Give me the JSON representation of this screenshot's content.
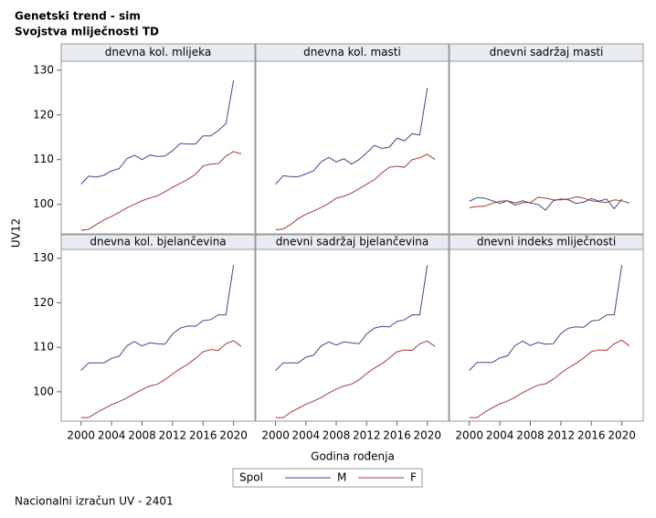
{
  "title": "Genetski trend - sim",
  "subtitle": "Svojstva mliječnosti TD",
  "footnote": "Nacionalni izračun UV - 2401",
  "chart_data": {
    "type": "line",
    "xlabel": "Godina rođenja",
    "ylabel": "UV12",
    "x": [
      2000,
      2001,
      2002,
      2003,
      2004,
      2005,
      2006,
      2007,
      2008,
      2009,
      2010,
      2011,
      2012,
      2013,
      2014,
      2015,
      2016,
      2017,
      2018,
      2019,
      2020,
      2021
    ],
    "xlim": [
      1997.4,
      2022.8
    ],
    "ylim": [
      93.4,
      132
    ],
    "xticks": [
      2000,
      2004,
      2008,
      2012,
      2016,
      2020
    ],
    "yticks": [
      100,
      110,
      120,
      130
    ],
    "legend": {
      "title": "Spol",
      "items": [
        {
          "name": "M",
          "color": "#3b4a8c"
        },
        {
          "name": "F",
          "color": "#a63a3a"
        }
      ]
    },
    "panels": [
      {
        "title": "dnevna kol. mlijeka",
        "series": [
          {
            "values": [
              104.5,
              106.3,
              106.1,
              106.5,
              107.5,
              108,
              110.2,
              111,
              110,
              111,
              110.7,
              110.8,
              112,
              113.6,
              113.5,
              113.5,
              115.3,
              115.3,
              116.5,
              118,
              127.7,
              null
            ]
          },
          {
            "values": [
              94.2,
              94.4,
              95.5,
              96.5,
              97.3,
              98.2,
              99.2,
              100,
              100.8,
              101.4,
              101.9,
              102.8,
              103.8,
              104.7,
              105.6,
              106.7,
              108.6,
              109,
              109.1,
              110.8,
              111.8,
              111.3
            ]
          }
        ]
      },
      {
        "title": "dnevna kol. masti",
        "series": [
          {
            "values": [
              104.5,
              106.4,
              106.2,
              106.2,
              106.8,
              107.5,
              109.5,
              110.5,
              109.5,
              110.2,
              109,
              110,
              111.5,
              113.2,
              112.5,
              112.8,
              114.8,
              114.2,
              115.8,
              115.5,
              126,
              null
            ]
          },
          {
            "values": [
              94.3,
              94.5,
              95.5,
              96.8,
              97.8,
              98.5,
              99.3,
              100.2,
              101.4,
              101.8,
              102.5,
              103.5,
              104.5,
              105.5,
              107,
              108.3,
              108.5,
              108.3,
              110,
              110.4,
              111.2,
              110
            ]
          }
        ]
      },
      {
        "title": "dnevni sadržaj masti",
        "series": [
          {
            "values": [
              100.7,
              101.5,
              101.4,
              100.8,
              100.2,
              100.8,
              100.3,
              100.8,
              100.3,
              100,
              98.7,
              100.8,
              101.2,
              101,
              100.2,
              100.5,
              101.3,
              100.7,
              101.2,
              99,
              101.2,
              null
            ]
          },
          {
            "values": [
              99.3,
              99.5,
              99.6,
              100.2,
              100.7,
              100.8,
              99.8,
              100.4,
              100.4,
              101.6,
              101.4,
              101,
              101,
              101.2,
              101.7,
              101.4,
              100.8,
              100.6,
              100.4,
              101,
              100.8,
              100.3
            ]
          }
        ]
      },
      {
        "title": "dnevna kol. bjelančevina",
        "series": [
          {
            "values": [
              104.8,
              106.5,
              106.5,
              106.5,
              107.5,
              108,
              110.3,
              111.3,
              110.3,
              111,
              110.8,
              110.7,
              113,
              114.3,
              114.8,
              114.7,
              116,
              116.2,
              117.3,
              117.3,
              128.5,
              null
            ]
          },
          {
            "values": [
              94.2,
              94.2,
              95.3,
              96.2,
              97.1,
              97.8,
              98.6,
              99.6,
              100.5,
              101.3,
              101.7,
              102.7,
              104,
              105.2,
              106.2,
              107.5,
              109,
              109.5,
              109.3,
              110.8,
              111.5,
              110.2
            ]
          }
        ]
      },
      {
        "title": "dnevni sadržaj bjelančevina",
        "series": [
          {
            "values": [
              104.8,
              106.5,
              106.5,
              106.5,
              107.8,
              108.2,
              110.3,
              111.2,
              110.5,
              111.2,
              111,
              110.8,
              113,
              114.3,
              114.7,
              114.6,
              115.8,
              116.2,
              117.3,
              117.3,
              128.5,
              null
            ]
          },
          {
            "values": [
              94.2,
              94.2,
              95.4,
              96.3,
              97.2,
              97.9,
              98.7,
              99.7,
              100.6,
              101.3,
              101.7,
              102.7,
              104.1,
              105.3,
              106.3,
              107.6,
              109,
              109.4,
              109.3,
              110.8,
              111.4,
              110.2
            ]
          }
        ]
      },
      {
        "title": "dnevni indeks mliječnosti",
        "series": [
          {
            "values": [
              104.8,
              106.6,
              106.6,
              106.6,
              107.6,
              108.1,
              110.4,
              111.4,
              110.4,
              111.1,
              110.7,
              110.8,
              113.1,
              114.3,
              114.6,
              114.5,
              115.9,
              116.1,
              117.3,
              117.3,
              128.5,
              null
            ]
          },
          {
            "values": [
              94.2,
              94.2,
              95.4,
              96.4,
              97.3,
              97.9,
              98.8,
              99.8,
              100.7,
              101.5,
              101.8,
              102.8,
              104.2,
              105.4,
              106.4,
              107.6,
              109,
              109.4,
              109.3,
              110.8,
              111.6,
              110.3
            ]
          }
        ]
      }
    ]
  }
}
